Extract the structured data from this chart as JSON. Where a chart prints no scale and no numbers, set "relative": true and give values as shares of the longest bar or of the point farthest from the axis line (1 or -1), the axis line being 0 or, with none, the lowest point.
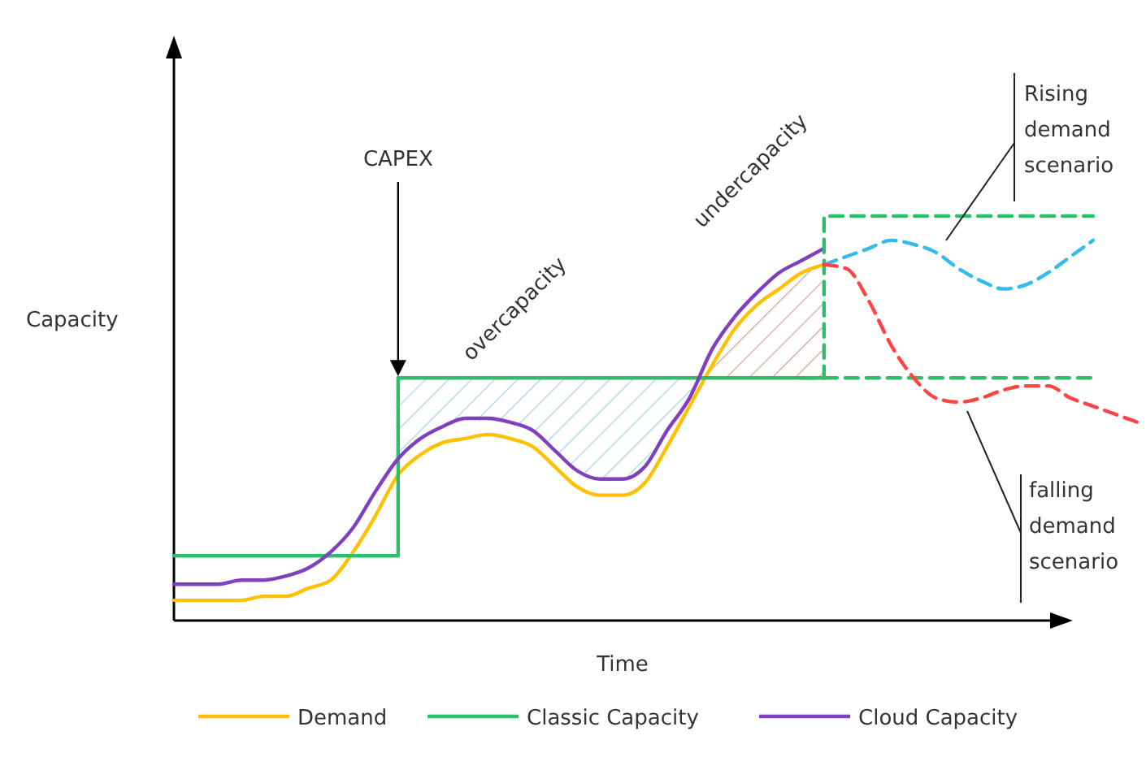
{
  "chart_data": {
    "type": "line",
    "relative": true,
    "xlabel": "Time",
    "ylabel": "Capacity",
    "legend": "bottom",
    "categories": [
      null,
      null,
      null,
      null,
      null,
      null,
      null,
      null,
      null,
      null,
      null,
      null,
      null,
      null,
      null,
      null,
      null,
      null,
      null,
      null,
      null,
      null,
      null,
      null,
      null,
      null,
      null,
      null,
      null,
      null,
      null,
      null,
      null,
      null,
      null,
      null,
      null,
      null,
      null,
      null,
      null,
      null,
      null,
      null
    ],
    "series": [
      {
        "name": "Demand",
        "color": "#ffc000",
        "line_style": "solid",
        "values": [
          0.05,
          0.05,
          0.05,
          0.05,
          0.06,
          0.06,
          0.08,
          0.1,
          0.17,
          0.26,
          0.36,
          0.41,
          0.44,
          0.45,
          0.46,
          0.45,
          0.43,
          0.38,
          0.33,
          0.31,
          0.31,
          0.34,
          0.43,
          0.53,
          0.63,
          0.72,
          0.78,
          0.82,
          0.86,
          0.88,
          null,
          null,
          null,
          null,
          null,
          null,
          null,
          null,
          null,
          null,
          null,
          null,
          null,
          null
        ]
      },
      {
        "name": "Classic Capacity",
        "type": "step",
        "color": "#2ebd6b",
        "line_style": "solid",
        "values": [
          0.16,
          0.16,
          0.16,
          0.16,
          0.16,
          0.16,
          0.16,
          0.16,
          0.16,
          0.16,
          0.6,
          0.6,
          0.6,
          0.6,
          0.6,
          0.6,
          0.6,
          0.6,
          0.6,
          0.6,
          0.6,
          0.6,
          0.6,
          0.6,
          0.6,
          0.6,
          0.6,
          0.6,
          0.6,
          0.6,
          null,
          null,
          null,
          null,
          null,
          null,
          null,
          null,
          null,
          null,
          null,
          null,
          null,
          null
        ]
      },
      {
        "name": "Cloud Capacity",
        "color": "#7f3fbf",
        "line_style": "solid",
        "values": [
          0.09,
          0.09,
          0.09,
          0.1,
          0.1,
          0.11,
          0.13,
          0.17,
          0.23,
          0.32,
          0.4,
          0.45,
          0.48,
          0.5,
          0.5,
          0.49,
          0.47,
          0.42,
          0.37,
          0.35,
          0.35,
          0.38,
          0.47,
          0.55,
          0.67,
          0.75,
          0.81,
          0.86,
          0.89,
          0.92,
          null,
          null,
          null,
          null,
          null,
          null,
          null,
          null,
          null,
          null,
          null,
          null,
          null,
          null
        ]
      },
      {
        "type": "step",
        "color": "#2ebd6b",
        "line_style": "dashed",
        "values": [
          null,
          null,
          null,
          null,
          null,
          null,
          null,
          null,
          null,
          null,
          null,
          null,
          null,
          null,
          null,
          null,
          null,
          null,
          null,
          null,
          null,
          null,
          null,
          null,
          null,
          null,
          null,
          null,
          0.6,
          1.0,
          1.0,
          1.0,
          1.0,
          1.0,
          1.0,
          1.0,
          1.0,
          1.0,
          1.0,
          1.0,
          1.0,
          1.0,
          null,
          null
        ]
      },
      {
        "color": "#2ebd6b",
        "line_style": "dashed",
        "values": [
          null,
          null,
          null,
          null,
          null,
          null,
          null,
          null,
          null,
          null,
          null,
          null,
          null,
          null,
          null,
          null,
          null,
          null,
          null,
          null,
          null,
          null,
          null,
          null,
          null,
          null,
          null,
          null,
          null,
          0.6,
          0.6,
          0.6,
          0.6,
          0.6,
          0.6,
          0.6,
          0.6,
          0.6,
          0.6,
          0.6,
          0.6,
          0.6,
          null,
          null
        ]
      },
      {
        "color": "#33bbee",
        "line_style": "dashed",
        "values": [
          null,
          null,
          null,
          null,
          null,
          null,
          null,
          null,
          null,
          null,
          null,
          null,
          null,
          null,
          null,
          null,
          null,
          null,
          null,
          null,
          null,
          null,
          null,
          null,
          null,
          null,
          null,
          null,
          null,
          0.88,
          0.9,
          0.92,
          0.94,
          0.93,
          0.91,
          0.87,
          0.84,
          0.82,
          0.83,
          0.86,
          0.9,
          0.94,
          null,
          null
        ]
      },
      {
        "color": "#ff4444",
        "line_style": "dashed",
        "values": [
          null,
          null,
          null,
          null,
          null,
          null,
          null,
          null,
          null,
          null,
          null,
          null,
          null,
          null,
          null,
          null,
          null,
          null,
          null,
          null,
          null,
          null,
          null,
          null,
          null,
          null,
          null,
          null,
          null,
          0.88,
          0.87,
          0.79,
          0.68,
          0.6,
          0.55,
          0.54,
          0.55,
          0.57,
          0.58,
          0.58,
          0.55,
          0.53,
          0.51,
          0.49
        ]
      }
    ],
    "annotations": [
      "CAPEX",
      "overcapacity",
      "undercapacity",
      "Rising demand scenario",
      "falling demand scenario"
    ]
  }
}
